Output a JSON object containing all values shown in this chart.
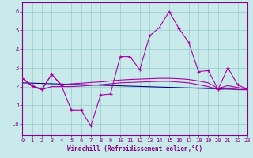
{
  "xlabel": "Windchill (Refroidissement éolien,°C)",
  "background_color": "#c8eaea",
  "line_color": "#aa00aa",
  "grid_color": "#99cccc",
  "straight_line_color": "#000080",
  "xlim": [
    0,
    23
  ],
  "ylim": [
    -0.6,
    6.5
  ],
  "yticks": [
    0,
    1,
    2,
    3,
    4,
    5,
    6
  ],
  "ytick_labels": [
    "-0",
    "1",
    "2",
    "3",
    "4",
    "5",
    "6"
  ],
  "xticks": [
    0,
    1,
    2,
    3,
    4,
    5,
    6,
    7,
    8,
    9,
    10,
    11,
    12,
    13,
    14,
    15,
    16,
    17,
    18,
    19,
    20,
    21,
    22,
    23
  ],
  "line1_x": [
    0,
    1,
    2,
    3,
    4,
    5,
    6,
    7,
    8,
    9,
    10,
    11,
    12,
    13,
    14,
    15,
    16,
    17,
    18,
    19,
    20,
    21,
    22,
    23
  ],
  "line1_y": [
    2.45,
    2.05,
    1.85,
    2.65,
    2.05,
    0.75,
    0.75,
    -0.1,
    1.55,
    1.6,
    3.6,
    3.6,
    2.9,
    4.7,
    5.15,
    6.0,
    5.1,
    4.35,
    2.8,
    2.85,
    1.85,
    3.0,
    2.1,
    1.85
  ],
  "line2_x": [
    0,
    1,
    2,
    3,
    4,
    5,
    6,
    7,
    8,
    9,
    10,
    11,
    12,
    13,
    14,
    15,
    16,
    17,
    18,
    19,
    20,
    21,
    22,
    23
  ],
  "line2_y": [
    2.45,
    2.05,
    1.85,
    2.65,
    2.1,
    2.15,
    2.18,
    2.22,
    2.25,
    2.3,
    2.35,
    2.38,
    2.4,
    2.42,
    2.44,
    2.44,
    2.42,
    2.38,
    2.3,
    2.2,
    1.9,
    2.05,
    1.95,
    1.85
  ],
  "line3_x": [
    0,
    1,
    2,
    3,
    4,
    5,
    6,
    7,
    8,
    9,
    10,
    11,
    12,
    13,
    14,
    15,
    16,
    17,
    18,
    19,
    20,
    21,
    22,
    23
  ],
  "line3_y": [
    2.45,
    2.0,
    1.83,
    2.0,
    2.0,
    2.0,
    2.03,
    2.06,
    2.1,
    2.15,
    2.2,
    2.22,
    2.24,
    2.26,
    2.28,
    2.28,
    2.24,
    2.2,
    2.1,
    2.0,
    1.83,
    1.9,
    1.83,
    1.83
  ],
  "line4_x": [
    0,
    23
  ],
  "line4_y": [
    2.2,
    1.83
  ]
}
